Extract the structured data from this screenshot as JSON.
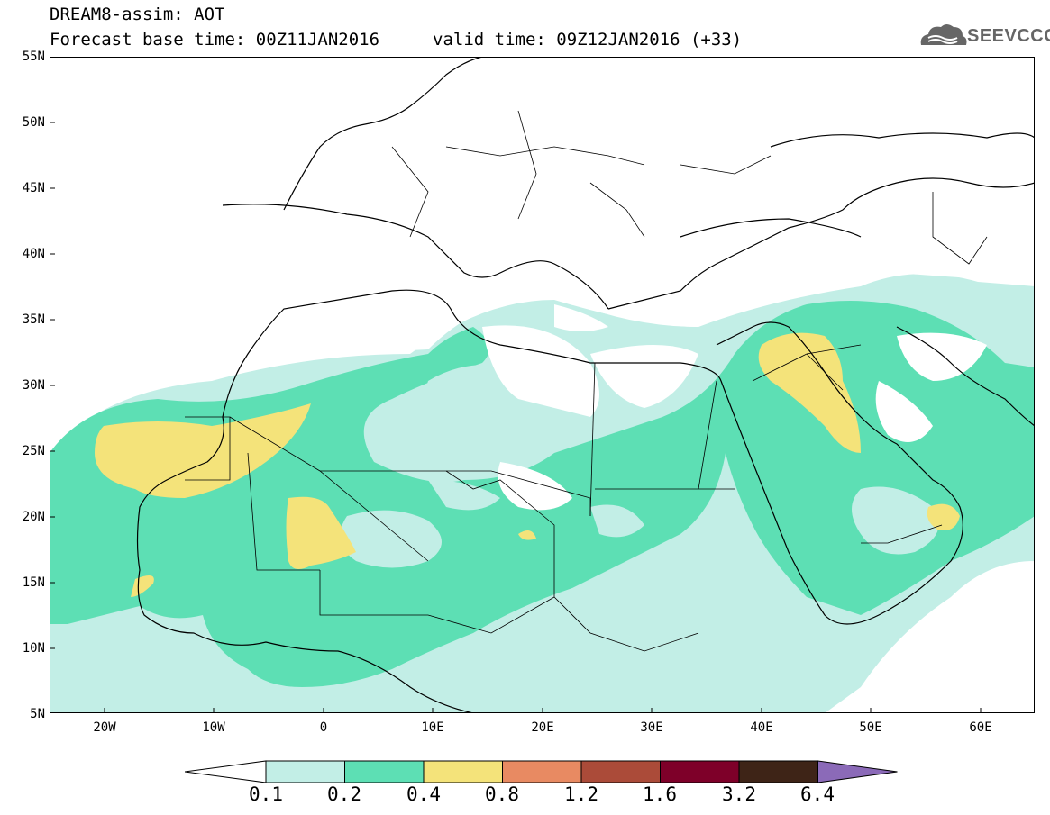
{
  "header": {
    "title": "DREAM8-assim: AOT",
    "forecast_line": "Forecast base time: 00Z11JAN2016",
    "valid_line": "valid time: 09Z12JAN2016 (+33)"
  },
  "logo": {
    "text": "SEEVCCC",
    "icon": "cloud-logo-icon"
  },
  "map": {
    "projection": "cylindrical",
    "lon_range": [
      "25W",
      "65E"
    ],
    "lat_range": [
      "5N",
      "55N"
    ],
    "lat_labels": [
      "55N",
      "50N",
      "45N",
      "40N",
      "35N",
      "30N",
      "25N",
      "20N",
      "15N",
      "10N",
      "5N"
    ],
    "lon_labels": [
      "20W",
      "10W",
      "0",
      "10E",
      "20E",
      "30E",
      "40E",
      "50E",
      "60E"
    ]
  },
  "colorbar": {
    "values": [
      "0.1",
      "0.2",
      "0.4",
      "0.8",
      "1.2",
      "1.6",
      "3.2",
      "6.4"
    ],
    "colors": [
      "#ffffff",
      "#c2eee6",
      "#5ddfb4",
      "#f4e37a",
      "#e88a62",
      "#ab4b39",
      "#7e0029",
      "#3e2417",
      "#8b6ab8"
    ]
  }
}
